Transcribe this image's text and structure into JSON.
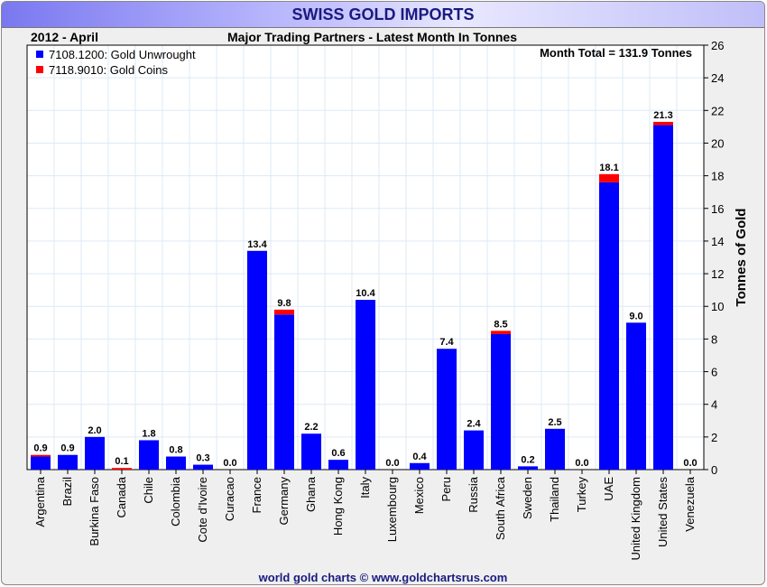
{
  "header": {
    "title": "SWISS GOLD IMPORTS",
    "period": "2012 - April",
    "subtitle": "Major Trading Partners - Latest Month In Tonnes",
    "total": "Month Total = 131.9 Tonnes"
  },
  "footer": "world gold charts © www.goldchartsrus.com",
  "chart_data": {
    "type": "bar",
    "stacked": true,
    "title": "SWISS GOLD IMPORTS",
    "ylabel": "Tonnes of Gold",
    "ylim": [
      0,
      26
    ],
    "yticks": [
      0,
      2,
      4,
      6,
      8,
      10,
      12,
      14,
      16,
      18,
      20,
      22,
      24,
      26
    ],
    "grid": true,
    "legend": "top-left",
    "categories": [
      "Argentina",
      "Brazil",
      "Burkina Faso",
      "Canada",
      "Chile",
      "Colombia",
      "Cote d'Ivoire",
      "Curacao",
      "France",
      "Germany",
      "Ghana",
      "Hong Kong",
      "Italy",
      "Luxembourg",
      "Mexico",
      "Peru",
      "Russia",
      "South Africa",
      "Sweden",
      "Thailand",
      "Turkey",
      "UAE",
      "United Kingdom",
      "United States",
      "Venezuela"
    ],
    "series": [
      {
        "name": "7108.1200: Gold Unwrought",
        "color": "#0000ff",
        "values": [
          0.8,
          0.9,
          2.0,
          0.0,
          1.8,
          0.8,
          0.3,
          0.0,
          13.4,
          9.5,
          2.2,
          0.6,
          10.4,
          0.0,
          0.4,
          7.4,
          2.4,
          8.3,
          0.2,
          2.5,
          0.0,
          17.6,
          9.0,
          21.1,
          0.0
        ]
      },
      {
        "name": "7118.9010: Gold Coins",
        "color": "#ff0000",
        "values": [
          0.1,
          0.0,
          0.0,
          0.1,
          0.0,
          0.0,
          0.0,
          0.0,
          0.0,
          0.3,
          0.0,
          0.0,
          0.0,
          0.0,
          0.0,
          0.0,
          0.0,
          0.2,
          0.0,
          0.0,
          0.0,
          0.5,
          0.0,
          0.2,
          0.0
        ]
      }
    ],
    "totals": [
      "0.9",
      "0.9",
      "2.0",
      "0.1",
      "1.8",
      "0.8",
      "0.3",
      "0.0",
      "13.4",
      "9.8",
      "2.2",
      "0.6",
      "10.4",
      "0.0",
      "0.4",
      "7.4",
      "2.4",
      "8.5",
      "0.2",
      "2.5",
      "0.0",
      "18.1",
      "9.0",
      "21.3",
      "0.0"
    ]
  }
}
